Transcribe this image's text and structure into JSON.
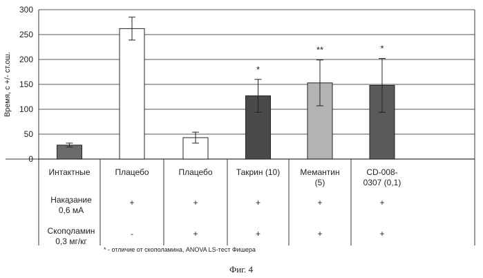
{
  "chart_data": {
    "type": "bar",
    "title": "",
    "ylabel": "Время, с +/- ст.ош.",
    "xlabel": "",
    "ylim": [
      0,
      300
    ],
    "yticks": [
      0,
      50,
      100,
      150,
      200,
      250,
      300
    ],
    "grid": true,
    "categories": [
      "Интактные",
      "Плацебо",
      "Плацебо",
      "Такрин (10)",
      "Мемантин (5)",
      "CD-008-0307 (0,1)"
    ],
    "category_lines": [
      [
        "Интактные"
      ],
      [
        "Плацебо"
      ],
      [
        "Плацебо"
      ],
      [
        "Такрин (10)"
      ],
      [
        "Мемантин",
        "(5)"
      ],
      [
        "CD-008-",
        "0307 (0,1)"
      ]
    ],
    "values": [
      28,
      262,
      43,
      127,
      153,
      148
    ],
    "errors": [
      4,
      23,
      11,
      33,
      46,
      54
    ],
    "significance": [
      "",
      "",
      "",
      "*",
      "**",
      "*"
    ],
    "bar_colors": [
      "#6b6b6b",
      "#ffffff",
      "#ffffff",
      "#4a4a4a",
      "#b3b3b3",
      "#5a5a5a"
    ],
    "rows": [
      {
        "label_lines": [
          "Наказание",
          "0,6 мА"
        ],
        "values": [
          "-",
          "+",
          "+",
          "+",
          "+",
          "+"
        ]
      },
      {
        "label_lines": [
          "Скополамин",
          "0,3 мг/кг"
        ],
        "values": [
          "-",
          "-",
          "+",
          "+",
          "+",
          "+"
        ]
      }
    ],
    "footnote": "* - отличие от скополамина, ANOVA LS-тест Фишера"
  },
  "caption": "Фиг. 4"
}
